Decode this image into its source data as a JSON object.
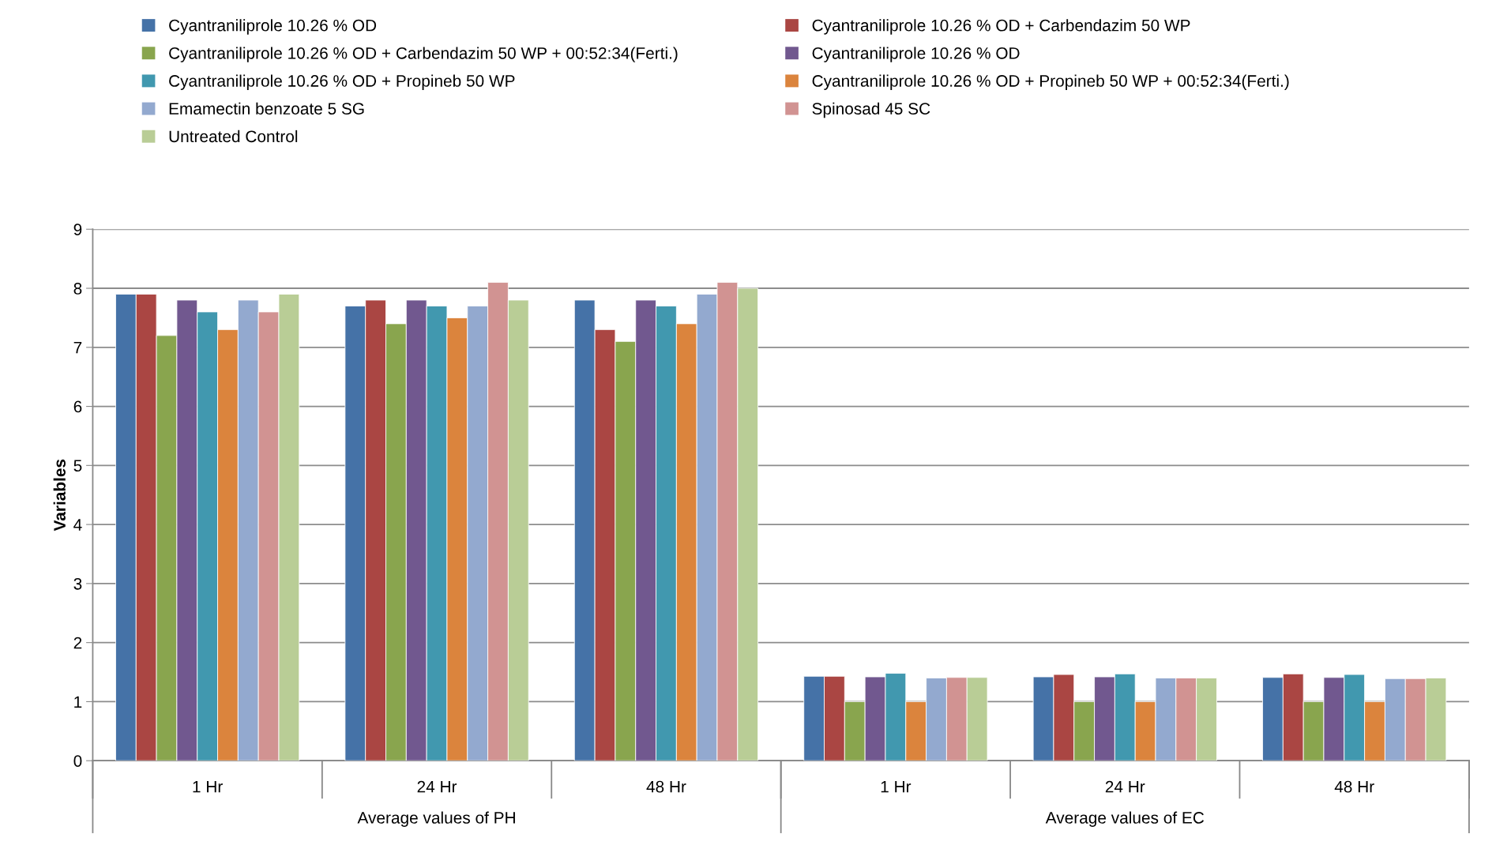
{
  "chart_data": {
    "type": "bar",
    "ylabel": "Variables",
    "categories": [
      "1 Hr",
      "24 Hr",
      "48 Hr",
      "1 Hr",
      "24 Hr",
      "48 Hr"
    ],
    "annotations": [
      "Average values of PH",
      "Average values of EC"
    ],
    "series": [
      {
        "name": "Cyantraniliprole 10.26 % OD",
        "color": "#4572a7",
        "values": [
          7.9,
          7.7,
          7.8,
          1.43,
          1.42,
          1.41
        ]
      },
      {
        "name": "Cyantraniliprole 10.26 % OD + Carbendazim 50 WP",
        "color": "#aa4643",
        "values": [
          7.9,
          7.8,
          7.3,
          1.43,
          1.46,
          1.47
        ]
      },
      {
        "name": "Cyantraniliprole 10.26 % OD + Carbendazim 50 WP + 00:52:34(Ferti.)",
        "color": "#89a54e",
        "values": [
          7.2,
          7.4,
          7.1,
          1.0,
          1.0,
          1.0
        ]
      },
      {
        "name": "Cyantraniliprole 10.26 % OD",
        "color": "#71588f",
        "values": [
          7.8,
          7.8,
          7.8,
          1.42,
          1.42,
          1.41
        ]
      },
      {
        "name": "Cyantraniliprole 10.26 % OD + Propineb 50 WP",
        "color": "#4198af",
        "values": [
          7.6,
          7.7,
          7.7,
          1.48,
          1.47,
          1.46
        ]
      },
      {
        "name": "Cyantraniliprole 10.26 % OD + Propineb 50 WP + 00:52:34(Ferti.)",
        "color": "#db843d",
        "values": [
          7.3,
          7.5,
          7.4,
          1.0,
          1.0,
          1.0
        ]
      },
      {
        "name": "Emamectin benzoate 5 SG",
        "color": "#93a9cf",
        "values": [
          7.8,
          7.7,
          7.9,
          1.4,
          1.4,
          1.39
        ]
      },
      {
        "name": "Spinosad 45 SC",
        "color": "#d19392",
        "values": [
          7.6,
          8.1,
          8.1,
          1.41,
          1.4,
          1.39
        ]
      },
      {
        "name": "Untreated Control",
        "color": "#b9cd96",
        "values": [
          7.9,
          7.8,
          8.0,
          1.41,
          1.4,
          1.4
        ]
      }
    ],
    "ylim": [
      0,
      9
    ],
    "yticks": [
      0,
      1,
      2,
      3,
      4,
      5,
      6,
      7,
      8,
      9
    ],
    "grid": "y",
    "legend": "top"
  }
}
